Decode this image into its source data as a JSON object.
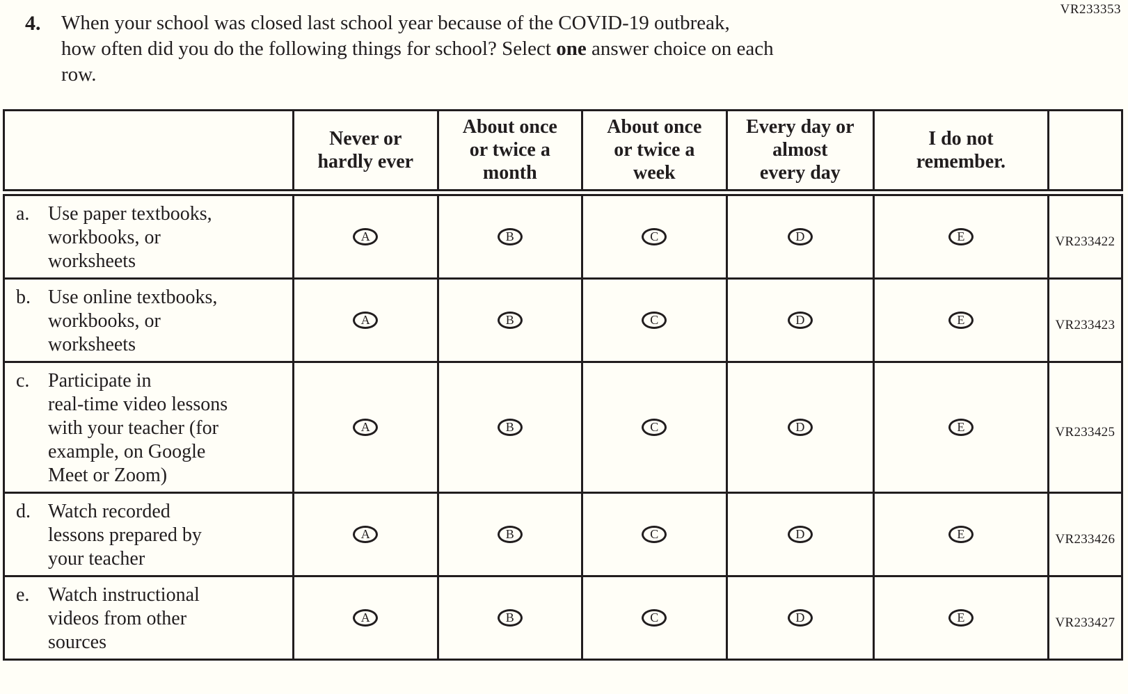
{
  "page": {
    "form_code": "VR233353"
  },
  "question": {
    "number": "4.",
    "text_part1": "When your school was closed last school year because of the COVID-19 outbreak,\nhow often did you do the following things for school? Select ",
    "bold_word": "one",
    "text_part2": " answer choice on each\nrow."
  },
  "table": {
    "column_headers": [
      "Never or\nhardly ever",
      "About once\nor twice a\nmonth",
      "About once\nor twice a\nweek",
      "Every day or\nalmost\nevery day",
      "I do not\nremember."
    ],
    "options": [
      "A",
      "B",
      "C",
      "D",
      "E"
    ],
    "rows": [
      {
        "label": "a.",
        "text": "Use paper textbooks,\nworkbooks, or\nworksheets",
        "code": "VR233422"
      },
      {
        "label": "b.",
        "text": "Use online textbooks,\nworkbooks, or\nworksheets",
        "code": "VR233423"
      },
      {
        "label": "c.",
        "text": "Participate in\nreal-time video lessons\nwith your teacher (for\nexample, on Google\nMeet or Zoom)",
        "code": "VR233425"
      },
      {
        "label": "d.",
        "text": "Watch recorded\nlessons prepared by\nyour teacher",
        "code": "VR233426"
      },
      {
        "label": "e.",
        "text": "Watch instructional\nvideos from other\nsources",
        "code": "VR233427"
      }
    ]
  },
  "colors": {
    "ink": "#211d1e",
    "background": "#fffef7"
  }
}
